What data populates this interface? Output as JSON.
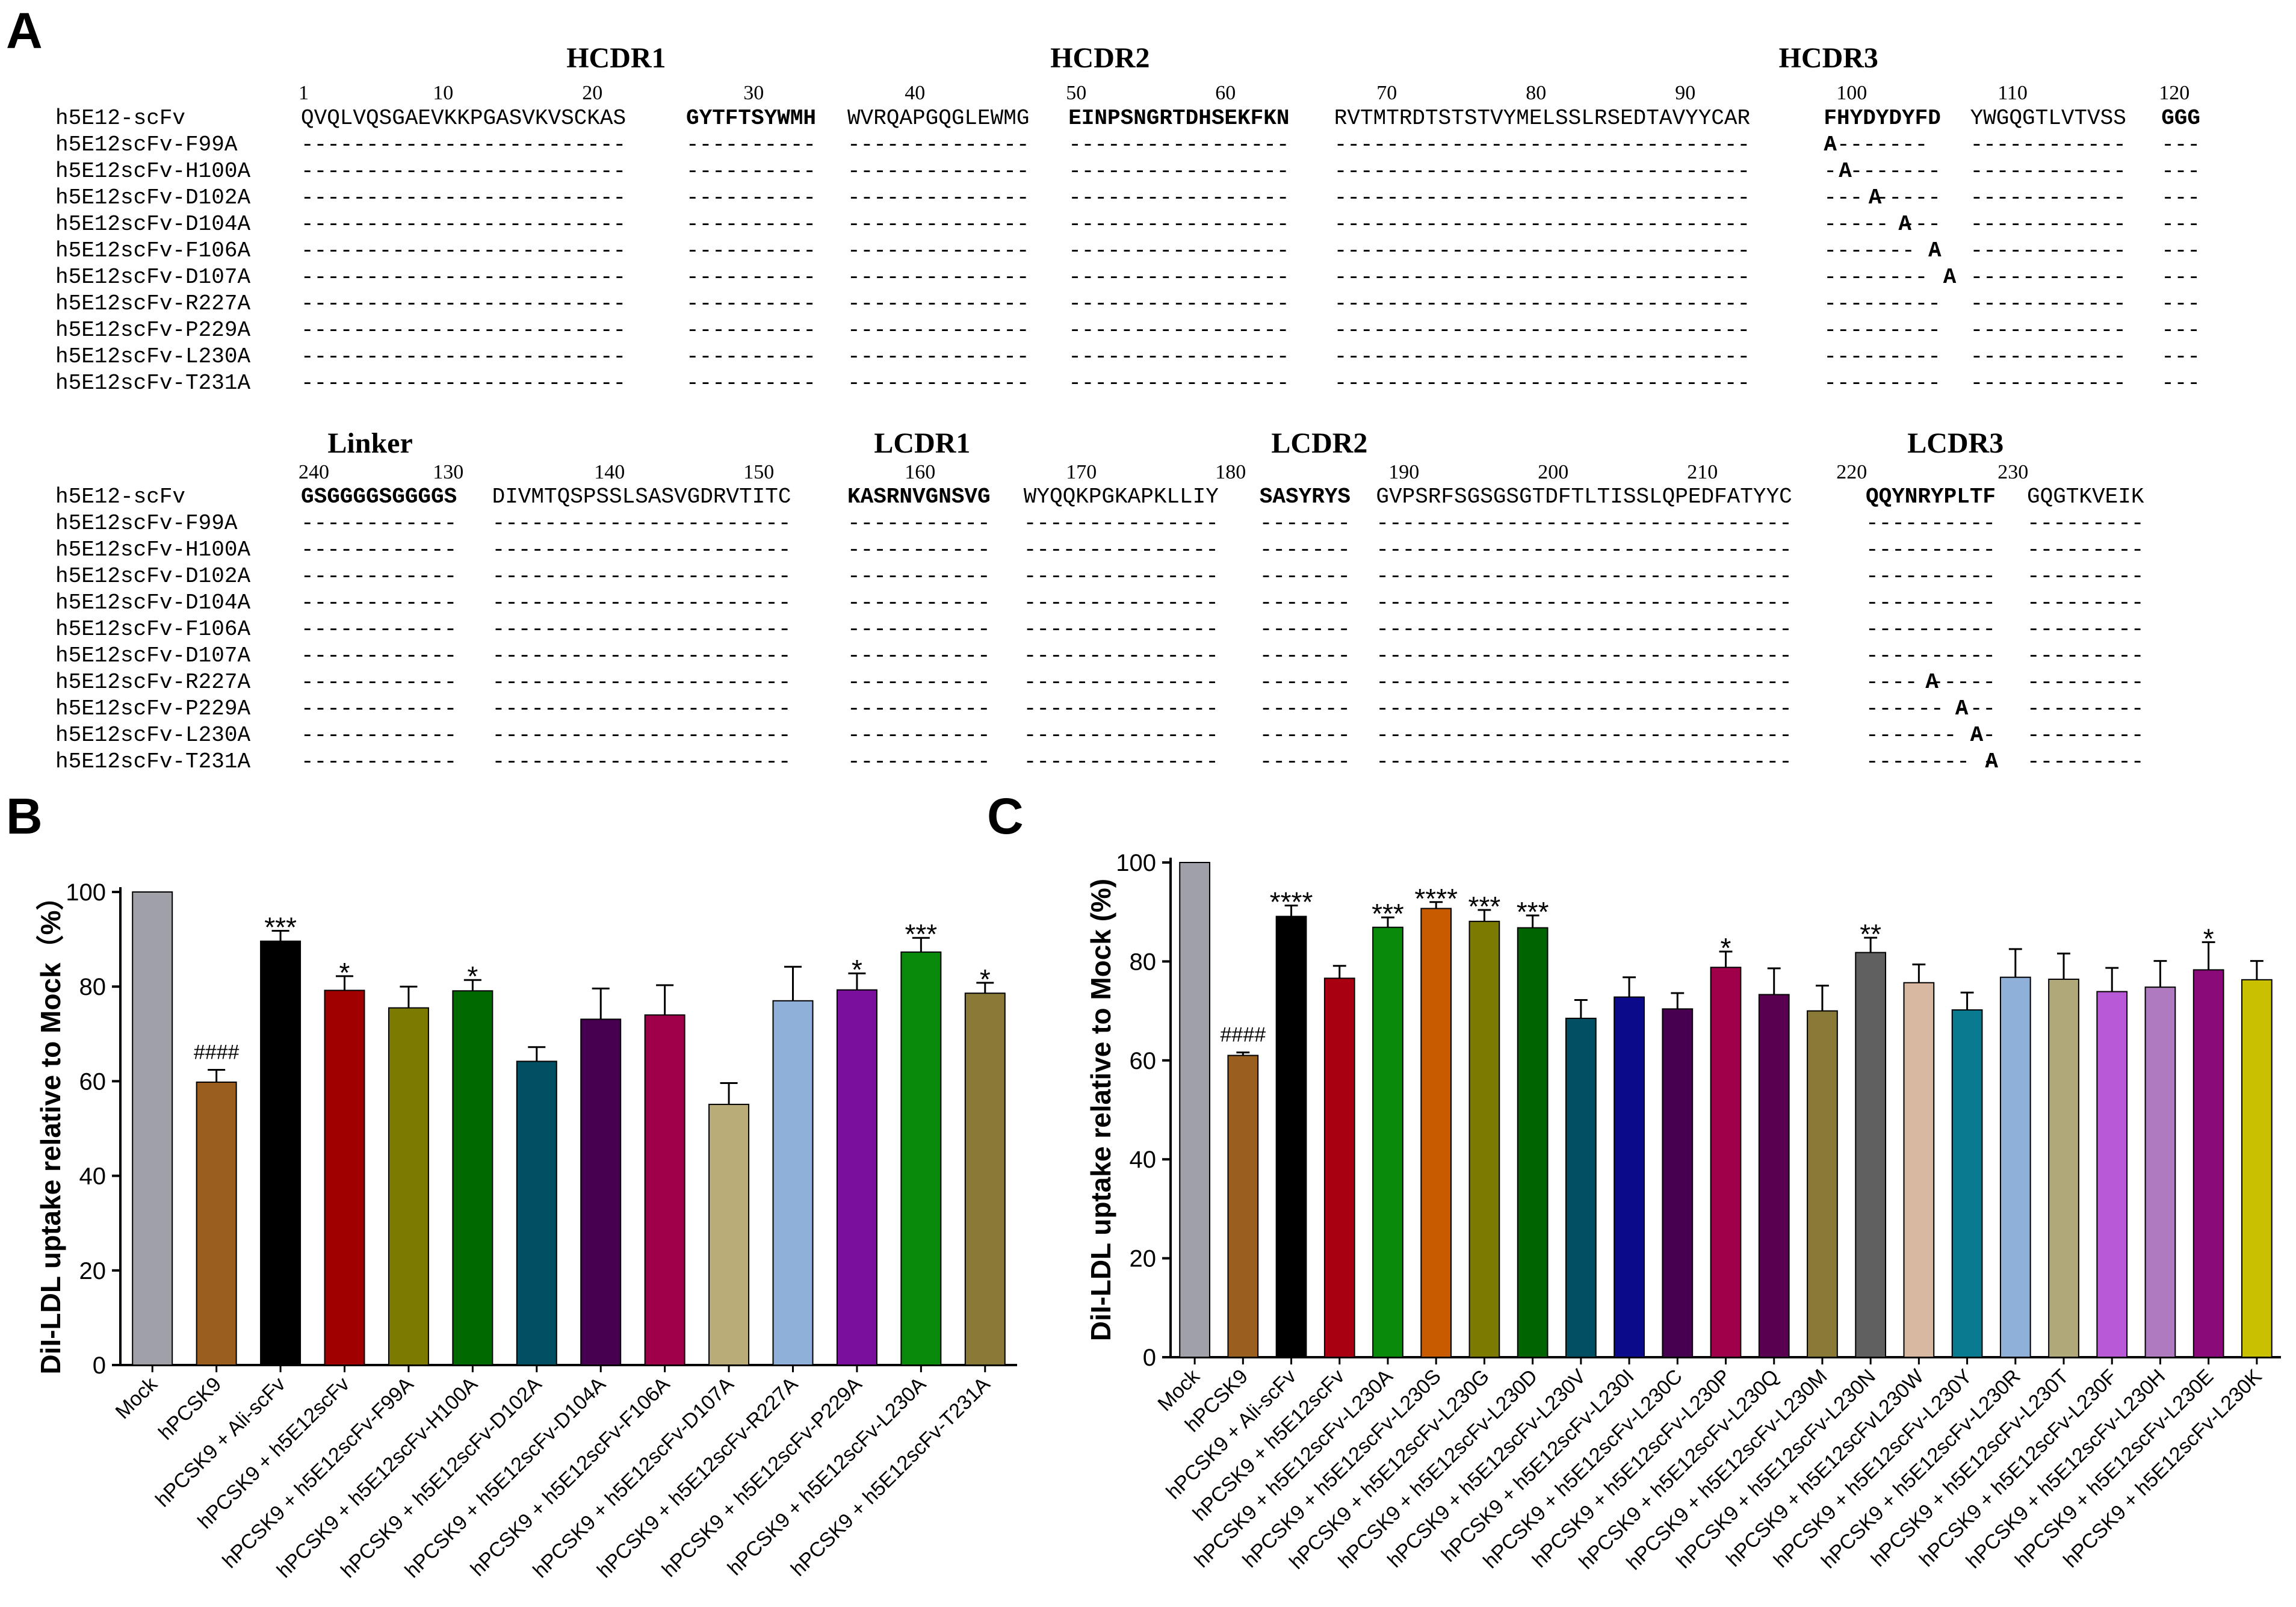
{
  "panels": {
    "A": "A",
    "B": "B",
    "C": "C"
  },
  "alignment": {
    "dash": "-",
    "block1": {
      "region_labels": [
        {
          "text": "HCDR1",
          "pos": 20
        },
        {
          "text": "HCDR2",
          "pos": 50
        },
        {
          "text": "HCDR3",
          "pos": 98
        }
      ],
      "numbers": [
        {
          "text": "1",
          "pos": 1
        },
        {
          "text": "10",
          "pos": 10
        },
        {
          "text": "20",
          "pos": 20
        },
        {
          "text": "30",
          "pos": 30
        },
        {
          "text": "40",
          "pos": 40
        },
        {
          "text": "50",
          "pos": 50
        },
        {
          "text": "60",
          "pos": 60
        },
        {
          "text": "70",
          "pos": 70
        },
        {
          "text": "80",
          "pos": 80
        },
        {
          "text": "90",
          "pos": 90
        },
        {
          "text": "100",
          "pos": 100
        },
        {
          "text": "110",
          "pos": 110
        },
        {
          "text": "120",
          "pos": 120
        }
      ],
      "reference": "h5E12-scFv",
      "segments": [
        {
          "text": "QVQLVQSGAEVKKPGASVKVSCKAS",
          "bold": false
        },
        {
          "text": "GYTFTSYWMH",
          "bold": true
        },
        {
          "text": "WVRQAPGQGLEWMG",
          "bold": false
        },
        {
          "text": "EINPSNGRTDHSEKFKN",
          "bold": true
        },
        {
          "text": "RVTMTRDTSTSTVYMELSSLRSEDTAVYYCAR",
          "bold": false
        },
        {
          "text": "FHYDYDYFD",
          "bold": true
        },
        {
          "text": "YWGQGTLVTVSS",
          "bold": false
        },
        {
          "text": "GGG",
          "bold": true
        }
      ],
      "mutations": [
        {
          "segment": 5,
          "index": 0
        },
        {
          "segment": 5,
          "index": 1
        },
        {
          "segment": 5,
          "index": 3
        },
        {
          "segment": 5,
          "index": 5
        },
        {
          "segment": 5,
          "index": 7
        },
        {
          "segment": 5,
          "index": 8
        },
        null,
        null,
        null,
        null
      ]
    },
    "block2": {
      "region_labels": [
        {
          "text": "Linker",
          "pos": 124
        },
        {
          "text": "LCDR1",
          "pos": 159
        },
        {
          "text": "LCDR2",
          "pos": 184
        },
        {
          "text": "LCDR3",
          "pos": 225
        }
      ],
      "numbers": [
        {
          "text": "130",
          "pos": 130
        },
        {
          "text": "140",
          "pos": 140
        },
        {
          "text": "150",
          "pos": 150
        },
        {
          "text": "160",
          "pos": 160
        },
        {
          "text": "170",
          "pos": 170
        },
        {
          "text": "180",
          "pos": 180
        },
        {
          "text": "190",
          "pos": 190
        },
        {
          "text": "200",
          "pos": 200
        },
        {
          "text": "210",
          "pos": 210
        },
        {
          "text": "220",
          "pos": 220
        },
        {
          "text": "230",
          "pos": 230
        },
        {
          "text": "240",
          "pos": 240
        }
      ],
      "reference": "h5E12-scFv",
      "segments": [
        {
          "text": "GSGGGGSGGGGS",
          "bold": true
        },
        {
          "text": "DIVMTQSPSSLSASVGDRVTITC",
          "bold": false
        },
        {
          "text": "KASRNVGNSVG",
          "bold": true
        },
        {
          "text": "WYQQKPGKAPKLLIY",
          "bold": false
        },
        {
          "text": "SASYRYS",
          "bold": true
        },
        {
          "text": "GVPSRFSGSGSGTDFTLTISSLQPEDFATYYC",
          "bold": false
        },
        {
          "text": "QQYNRYPLTF",
          "bold": true
        },
        {
          "text": "GQGTKVEIK",
          "bold": false
        }
      ],
      "mutations": [
        null,
        null,
        null,
        null,
        null,
        null,
        {
          "segment": 6,
          "index": 4
        },
        {
          "segment": 6,
          "index": 6
        },
        {
          "segment": 6,
          "index": 7
        },
        {
          "segment": 6,
          "index": 8
        }
      ]
    },
    "mutant_names": [
      "h5E12scFv-F99A",
      "h5E12scFv-H100A",
      "h5E12scFv-D102A",
      "h5E12scFv-D104A",
      "h5E12scFv-F106A",
      "h5E12scFv-D107A",
      "h5E12scFv-R227A",
      "h5E12scFv-P229A",
      "h5E12scFv-L230A",
      "h5E12scFv-T231A"
    ],
    "mutant_letter": "A"
  },
  "chart_data": [
    {
      "panel": "B",
      "type": "bar",
      "ylabel": "DiI-LDL uptake relative to Mock（%）",
      "ylim": [
        0,
        100
      ],
      "yticks": [
        0,
        20,
        40,
        60,
        80,
        100
      ],
      "categories": [
        "Mock",
        "hPCSK9",
        "hPCSK9 + Ali-scFv",
        "hPCSK9 + h5E12scFv",
        "hPCSK9 + h5E12scFv-F99A",
        "hPCSK9 + h5E12scFv-H100A",
        "hPCSK9 + h5E12scFv-D102A",
        "hPCSK9 + h5E12scFv-D104A",
        "hPCSK9 + h5E12scFv-F106A",
        "hPCSK9 + h5E12scFv-D107A",
        "hPCSK9 + h5E12scFv-R227A",
        "hPCSK9 + h5E12scFv-P229A",
        "hPCSK9 + h5E12scFv-L230A",
        "hPCSK9 + h5E12scFv-T231A"
      ],
      "values": [
        100,
        59.8,
        89.6,
        79.2,
        75.5,
        79.1,
        64.2,
        73.1,
        74.0,
        55.1,
        77.0,
        79.3,
        87.3,
        78.6
      ],
      "errors": [
        0,
        2.6,
        2.2,
        3.0,
        4.5,
        2.3,
        3.0,
        6.5,
        6.3,
        4.5,
        7.2,
        3.5,
        3.0,
        2.2
      ],
      "significance": [
        "",
        "####",
        "***",
        "*",
        "",
        "*",
        "",
        "",
        "",
        "",
        "",
        "*",
        "***",
        "*"
      ],
      "colors": [
        "#a0a0a8",
        "#9a5f1e",
        "#000000",
        "#a00000",
        "#7c7a00",
        "#006a00",
        "#004f63",
        "#47004f",
        "#a0004a",
        "#b9ac78",
        "#8fb0d8",
        "#7a0f9e",
        "#0a8a0a",
        "#8a7a38"
      ]
    },
    {
      "panel": "C",
      "type": "bar",
      "ylabel": "DiI-LDL uptake relative to Mock (%)",
      "ylim": [
        0,
        100
      ],
      "yticks": [
        0,
        20,
        40,
        60,
        80,
        100
      ],
      "categories": [
        "Mock",
        "hPCSK9",
        "hPCSK9 + Ali-scFv",
        "hPCSK9 + h5E12scFv",
        "hPCSK9 + h5E12scFv-L230A",
        "hPCSK9 + h5E12scFv-L230S",
        "hPCSK9 + h5E12scFv-L230G",
        "hPCSK9 + h5E12scFv-L230D",
        "hPCSK9 + h5E12scFv-L230V",
        "hPCSK9 + h5E12scFv-L230I",
        "hPCSK9 + h5E12scFv-L230C",
        "hPCSK9 + h5E12scFv-L230P",
        "hPCSK9 + h5E12scFv-L230Q",
        "hPCSK9 + h5E12scFv-L230M",
        "hPCSK9 + h5E12scFv-L230N",
        "hPCSK9 + h5E12scFvL230W",
        "hPCSK9 + h5E12scFv-L230Y",
        "hPCSK9 + h5E12scFv-L230R",
        "hPCSK9 + h5E12scFv-L230T",
        "hPCSK9 + h5E12scFv-L230F",
        "hPCSK9 + h5E12scFv-L230H",
        "hPCSK9 + h5E12scFv-L230E",
        "hPCSK9 + h5E12scFv-L230K"
      ],
      "values": [
        100,
        61.0,
        89.1,
        76.6,
        86.9,
        90.7,
        88.1,
        86.8,
        68.5,
        72.8,
        70.4,
        78.8,
        73.3,
        70.0,
        81.8,
        75.7,
        70.2,
        76.8,
        76.4,
        73.9,
        74.8,
        78.3,
        76.3
      ],
      "errors": [
        0,
        0.6,
        2.2,
        2.5,
        2.0,
        1.3,
        2.3,
        2.5,
        3.7,
        4.0,
        3.2,
        3.2,
        5.3,
        5.1,
        3.0,
        3.7,
        3.5,
        5.7,
        5.2,
        4.8,
        5.3,
        5.6,
        3.8
      ],
      "significance": [
        "",
        "####",
        "****",
        "",
        "***",
        "****",
        "***",
        "***",
        "",
        "",
        "",
        "*",
        "",
        "",
        "**",
        "",
        "",
        "",
        "",
        "",
        "",
        "*",
        ""
      ],
      "colors": [
        "#a0a0a8",
        "#9a5f1e",
        "#000000",
        "#a80010",
        "#0a8a0a",
        "#c85a00",
        "#7c7a00",
        "#006400",
        "#004f63",
        "#0a0a8a",
        "#47004f",
        "#a0004a",
        "#5a0050",
        "#8a7a38",
        "#606060",
        "#d8b8a0",
        "#0a7a90",
        "#8fb0d8",
        "#b0a878",
        "#b85ad8",
        "#b07ac0",
        "#8a0a7a",
        "#c8c000"
      ]
    }
  ]
}
